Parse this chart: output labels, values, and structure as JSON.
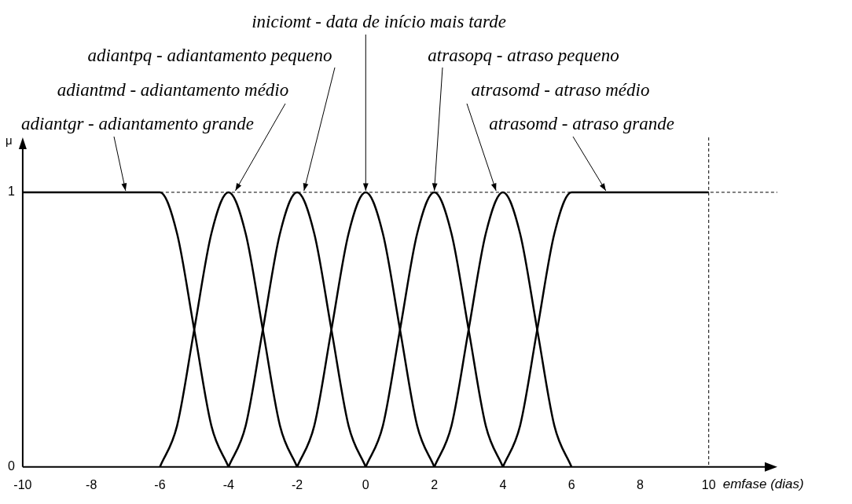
{
  "chart_data": {
    "type": "line",
    "xlabel": "emfase (dias)",
    "ylabel": "μ",
    "xlim": [
      -10,
      12
    ],
    "ylim": [
      0,
      1.2
    ],
    "xticks": [
      -10,
      -8,
      -6,
      -4,
      -2,
      0,
      2,
      4,
      6,
      8,
      10
    ],
    "yticks": [
      0,
      1
    ],
    "grid": false,
    "legend": false,
    "marker": "none",
    "line_style": "solid",
    "series": [
      {
        "color": "#000000",
        "x": [
          -10,
          -6,
          -5.5,
          -5,
          -4.5,
          -4
        ],
        "values": [
          1,
          1,
          0.85,
          0.5,
          0.15,
          0
        ]
      },
      {
        "color": "#000000",
        "x": [
          -6,
          -5.5,
          -5,
          -4.5,
          -4,
          -3.5,
          -3,
          -2.5,
          -2
        ],
        "values": [
          0,
          0.15,
          0.5,
          0.85,
          1,
          0.85,
          0.5,
          0.15,
          0
        ]
      },
      {
        "color": "#000000",
        "x": [
          -4,
          -3.5,
          -3,
          -2.5,
          -2,
          -1.5,
          -1,
          -0.5,
          0
        ],
        "values": [
          0,
          0.15,
          0.5,
          0.85,
          1,
          0.85,
          0.5,
          0.15,
          0
        ]
      },
      {
        "color": "#000000",
        "x": [
          -2,
          -1.5,
          -1,
          -0.5,
          0,
          0.5,
          1,
          1.5,
          2
        ],
        "values": [
          0,
          0.15,
          0.5,
          0.85,
          1,
          0.85,
          0.5,
          0.15,
          0
        ]
      },
      {
        "color": "#000000",
        "x": [
          0,
          0.5,
          1,
          1.5,
          2,
          2.5,
          3,
          3.5,
          4
        ],
        "values": [
          0,
          0.15,
          0.5,
          0.85,
          1,
          0.85,
          0.5,
          0.15,
          0
        ]
      },
      {
        "color": "#000000",
        "x": [
          2,
          2.5,
          3,
          3.5,
          4,
          4.5,
          5,
          5.5,
          6
        ],
        "values": [
          0,
          0.15,
          0.5,
          0.85,
          1,
          0.85,
          0.5,
          0.15,
          0
        ]
      },
      {
        "color": "#000000",
        "x": [
          4,
          4.5,
          5,
          5.5,
          6,
          10
        ],
        "values": [
          0,
          0.15,
          0.5,
          0.85,
          1,
          1
        ]
      }
    ],
    "ref_lines": [
      {
        "axis": "y",
        "value": 1,
        "color": "#000000",
        "line_style": "dashed"
      },
      {
        "axis": "x",
        "value": 10,
        "color": "#000000",
        "line_style": "dashed"
      }
    ],
    "annotations": [
      {
        "text": "adiantgr - adiantamento grande",
        "x": -7,
        "y": 1
      },
      {
        "text": "adiantmd - adiantamento médio",
        "x": -3.8,
        "y": 1
      },
      {
        "text": "adiantpq - adiantamento pequeno",
        "x": -1.8,
        "y": 1
      },
      {
        "text": "iniciomt - data de início mais tarde",
        "x": 0,
        "y": 1
      },
      {
        "text": "atrasopq - atraso pequeno",
        "x": 2,
        "y": 1
      },
      {
        "text": "atrasomd - atraso médio",
        "x": 3.8,
        "y": 1
      },
      {
        "text": "atrasomd - atraso grande",
        "x": 7,
        "y": 1
      }
    ]
  }
}
